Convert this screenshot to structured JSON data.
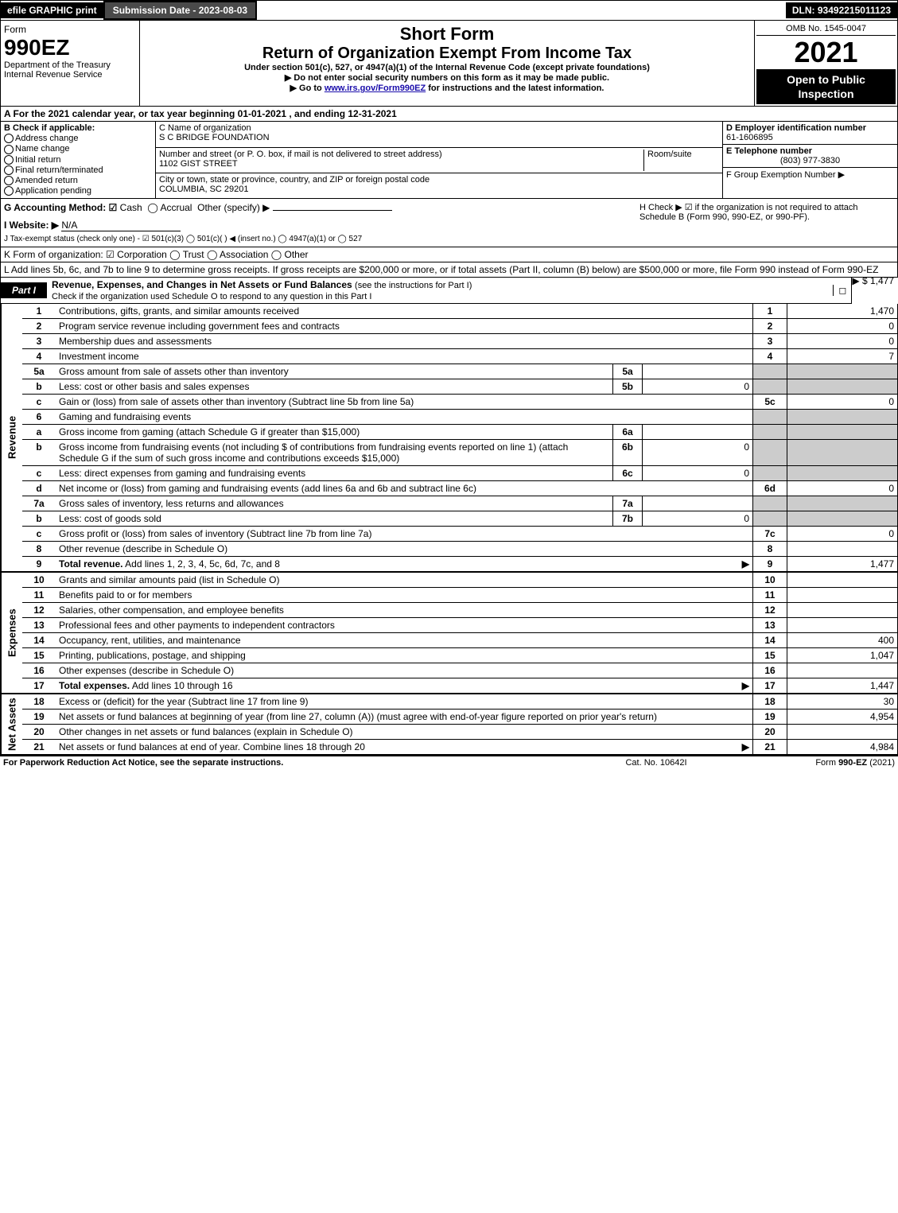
{
  "topbar": {
    "efile": "efile GRAPHIC print",
    "subdate": "Submission Date - 2023-08-03",
    "dln": "DLN: 93492215011123"
  },
  "header": {
    "form_label": "Form",
    "form_num": "990EZ",
    "dept1": "Department of the Treasury",
    "dept2": "Internal Revenue Service",
    "short_form": "Short Form",
    "main_title": "Return of Organization Exempt From Income Tax",
    "sub1": "Under section 501(c), 527, or 4947(a)(1) of the Internal Revenue Code (except private foundations)",
    "sub2_prefix": "▶ Do not enter social security numbers on this form as it may be made public.",
    "sub3_prefix": "▶ Go to ",
    "sub3_link": "www.irs.gov/Form990EZ",
    "sub3_suffix": " for instructions and the latest information.",
    "omb": "OMB No. 1545-0047",
    "year": "2021",
    "open": "Open to Public Inspection"
  },
  "rowA": "A  For the 2021 calendar year, or tax year beginning 01-01-2021 , and ending 12-31-2021",
  "blockB": {
    "title": "B  Check if applicable:",
    "items": [
      "Address change",
      "Name change",
      "Initial return",
      "Final return/terminated",
      "Amended return",
      "Application pending"
    ]
  },
  "blockC": {
    "name_label": "C Name of organization",
    "name": "S C BRIDGE FOUNDATION",
    "street_label": "Number and street (or P. O. box, if mail is not delivered to street address)",
    "room_label": "Room/suite",
    "street": "1102 GIST STREET",
    "city_label": "City or town, state or province, country, and ZIP or foreign postal code",
    "city": "COLUMBIA, SC  29201"
  },
  "blockDEF": {
    "d_label": "D Employer identification number",
    "d_val": "61-1606895",
    "e_label": "E Telephone number",
    "e_val": "(803) 977-3830",
    "f_label": "F Group Exemption Number  ▶"
  },
  "rowG": {
    "label": "G Accounting Method:",
    "cash": "Cash",
    "accrual": "Accrual",
    "other": "Other (specify) ▶"
  },
  "rowH": "H  Check ▶ ☑ if the organization is not required to attach Schedule B (Form 990, 990-EZ, or 990-PF).",
  "rowI": {
    "label": "I Website: ▶",
    "val": "N/A"
  },
  "rowJ": "J Tax-exempt status (check only one) - ☑ 501(c)(3)  ◯ 501(c)(  ) ◀ (insert no.)  ◯ 4947(a)(1) or  ◯ 527",
  "rowK": "K Form of organization:  ☑ Corporation  ◯ Trust  ◯ Association  ◯ Other",
  "rowL": {
    "text": "L Add lines 5b, 6c, and 7b to line 9 to determine gross receipts. If gross receipts are $200,000 or more, or if total assets (Part II, column (B) below) are $500,000 or more, file Form 990 instead of Form 990-EZ",
    "amount": "▶ $ 1,477"
  },
  "partI": {
    "tag": "Part I",
    "title": "Revenue, Expenses, and Changes in Net Assets or Fund Balances",
    "note": "(see the instructions for Part I)",
    "check": "Check if the organization used Schedule O to respond to any question in this Part I",
    "check_box": "◻"
  },
  "sections": {
    "revenue": "Revenue",
    "expenses": "Expenses",
    "netassets": "Net Assets"
  },
  "lines": [
    {
      "n": "1",
      "d": "Contributions, gifts, grants, and similar amounts received",
      "rn": "1",
      "rv": "1,470"
    },
    {
      "n": "2",
      "d": "Program service revenue including government fees and contracts",
      "rn": "2",
      "rv": "0"
    },
    {
      "n": "3",
      "d": "Membership dues and assessments",
      "rn": "3",
      "rv": "0"
    },
    {
      "n": "4",
      "d": "Investment income",
      "rn": "4",
      "rv": "7"
    },
    {
      "n": "5a",
      "d": "Gross amount from sale of assets other than inventory",
      "in": "5a",
      "iv": "",
      "shade": true
    },
    {
      "n": "b",
      "d": "Less: cost or other basis and sales expenses",
      "in": "5b",
      "iv": "0",
      "shade": true
    },
    {
      "n": "c",
      "d": "Gain or (loss) from sale of assets other than inventory (Subtract line 5b from line 5a)",
      "rn": "5c",
      "rv": "0"
    },
    {
      "n": "6",
      "d": "Gaming and fundraising events",
      "shade": true,
      "noval": true
    },
    {
      "n": "a",
      "d": "Gross income from gaming (attach Schedule G if greater than $15,000)",
      "in": "6a",
      "iv": "",
      "shade": true
    },
    {
      "n": "b",
      "d": "Gross income from fundraising events (not including $                     of contributions from fundraising events reported on line 1) (attach Schedule G if the sum of such gross income and contributions exceeds $15,000)",
      "in": "6b",
      "iv": "0",
      "shade": true
    },
    {
      "n": "c",
      "d": "Less: direct expenses from gaming and fundraising events",
      "in": "6c",
      "iv": "0",
      "shade": true
    },
    {
      "n": "d",
      "d": "Net income or (loss) from gaming and fundraising events (add lines 6a and 6b and subtract line 6c)",
      "rn": "6d",
      "rv": "0"
    },
    {
      "n": "7a",
      "d": "Gross sales of inventory, less returns and allowances",
      "in": "7a",
      "iv": "",
      "shade": true
    },
    {
      "n": "b",
      "d": "Less: cost of goods sold",
      "in": "7b",
      "iv": "0",
      "shade": true
    },
    {
      "n": "c",
      "d": "Gross profit or (loss) from sales of inventory (Subtract line 7b from line 7a)",
      "rn": "7c",
      "rv": "0"
    },
    {
      "n": "8",
      "d": "Other revenue (describe in Schedule O)",
      "rn": "8",
      "rv": ""
    },
    {
      "n": "9",
      "d": "Total revenue. Add lines 1, 2, 3, 4, 5c, 6d, 7c, and 8",
      "rn": "9",
      "rv": "1,477",
      "bold": true,
      "arrow": true
    }
  ],
  "exp_lines": [
    {
      "n": "10",
      "d": "Grants and similar amounts paid (list in Schedule O)",
      "rn": "10",
      "rv": ""
    },
    {
      "n": "11",
      "d": "Benefits paid to or for members",
      "rn": "11",
      "rv": ""
    },
    {
      "n": "12",
      "d": "Salaries, other compensation, and employee benefits",
      "rn": "12",
      "rv": ""
    },
    {
      "n": "13",
      "d": "Professional fees and other payments to independent contractors",
      "rn": "13",
      "rv": ""
    },
    {
      "n": "14",
      "d": "Occupancy, rent, utilities, and maintenance",
      "rn": "14",
      "rv": "400"
    },
    {
      "n": "15",
      "d": "Printing, publications, postage, and shipping",
      "rn": "15",
      "rv": "1,047"
    },
    {
      "n": "16",
      "d": "Other expenses (describe in Schedule O)",
      "rn": "16",
      "rv": ""
    },
    {
      "n": "17",
      "d": "Total expenses. Add lines 10 through 16",
      "rn": "17",
      "rv": "1,447",
      "bold": true,
      "arrow": true
    }
  ],
  "net_lines": [
    {
      "n": "18",
      "d": "Excess or (deficit) for the year (Subtract line 17 from line 9)",
      "rn": "18",
      "rv": "30"
    },
    {
      "n": "19",
      "d": "Net assets or fund balances at beginning of year (from line 27, column (A)) (must agree with end-of-year figure reported on prior year's return)",
      "rn": "19",
      "rv": "4,954"
    },
    {
      "n": "20",
      "d": "Other changes in net assets or fund balances (explain in Schedule O)",
      "rn": "20",
      "rv": ""
    },
    {
      "n": "21",
      "d": "Net assets or fund balances at end of year. Combine lines 18 through 20",
      "rn": "21",
      "rv": "4,984",
      "arrow": true
    }
  ],
  "footer": {
    "left": "For Paperwork Reduction Act Notice, see the separate instructions.",
    "mid": "Cat. No. 10642I",
    "right_prefix": "Form ",
    "right_form": "990-EZ",
    "right_suffix": " (2021)"
  }
}
